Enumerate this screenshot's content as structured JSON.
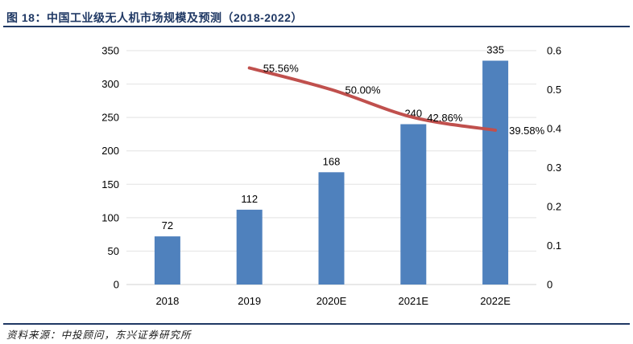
{
  "header": {
    "title": "图 18：中国工业级无人机市场规模及预测（2018-2022）"
  },
  "footer": {
    "source": "资料来源：中投顾问，东兴证券研究所"
  },
  "chart_data": {
    "type": "bar",
    "title": "中国工业级无人机市场规模及预测（2018-2022）",
    "categories": [
      "2018",
      "2019",
      "2020E",
      "2021E",
      "2022E"
    ],
    "series": [
      {
        "name": "market-size-bars",
        "type": "bar",
        "axis": "left",
        "values": [
          72,
          112,
          168,
          240,
          335
        ],
        "labels": [
          "72",
          "112",
          "168",
          "240",
          "335"
        ],
        "color": "#4F81BD"
      },
      {
        "name": "growth-rate-line",
        "type": "line",
        "axis": "right",
        "values": [
          null,
          0.5556,
          0.5,
          0.4286,
          0.3958
        ],
        "labels": [
          null,
          "55.56%",
          "50.00%",
          "42.86%",
          "39.58%"
        ],
        "color": "#C0504D"
      }
    ],
    "left_axis": {
      "min": 0,
      "max": 350,
      "step": 50,
      "ticks": [
        "0",
        "50",
        "100",
        "150",
        "200",
        "250",
        "300",
        "350"
      ]
    },
    "right_axis": {
      "min": 0,
      "max": 0.6,
      "step": 0.1,
      "ticks": [
        "0",
        "0.1",
        "0.2",
        "0.3",
        "0.4",
        "0.5",
        "0.6"
      ]
    },
    "grid": true,
    "legend_position": "none",
    "xlabel": "",
    "ylabel": "",
    "colors": {
      "bar": "#4F81BD",
      "line": "#C0504D",
      "gridline": "#e2e2e2",
      "zeroline": "#d2d2d2",
      "accent_navy": "#1f3864",
      "tick_text": "#000000"
    }
  }
}
